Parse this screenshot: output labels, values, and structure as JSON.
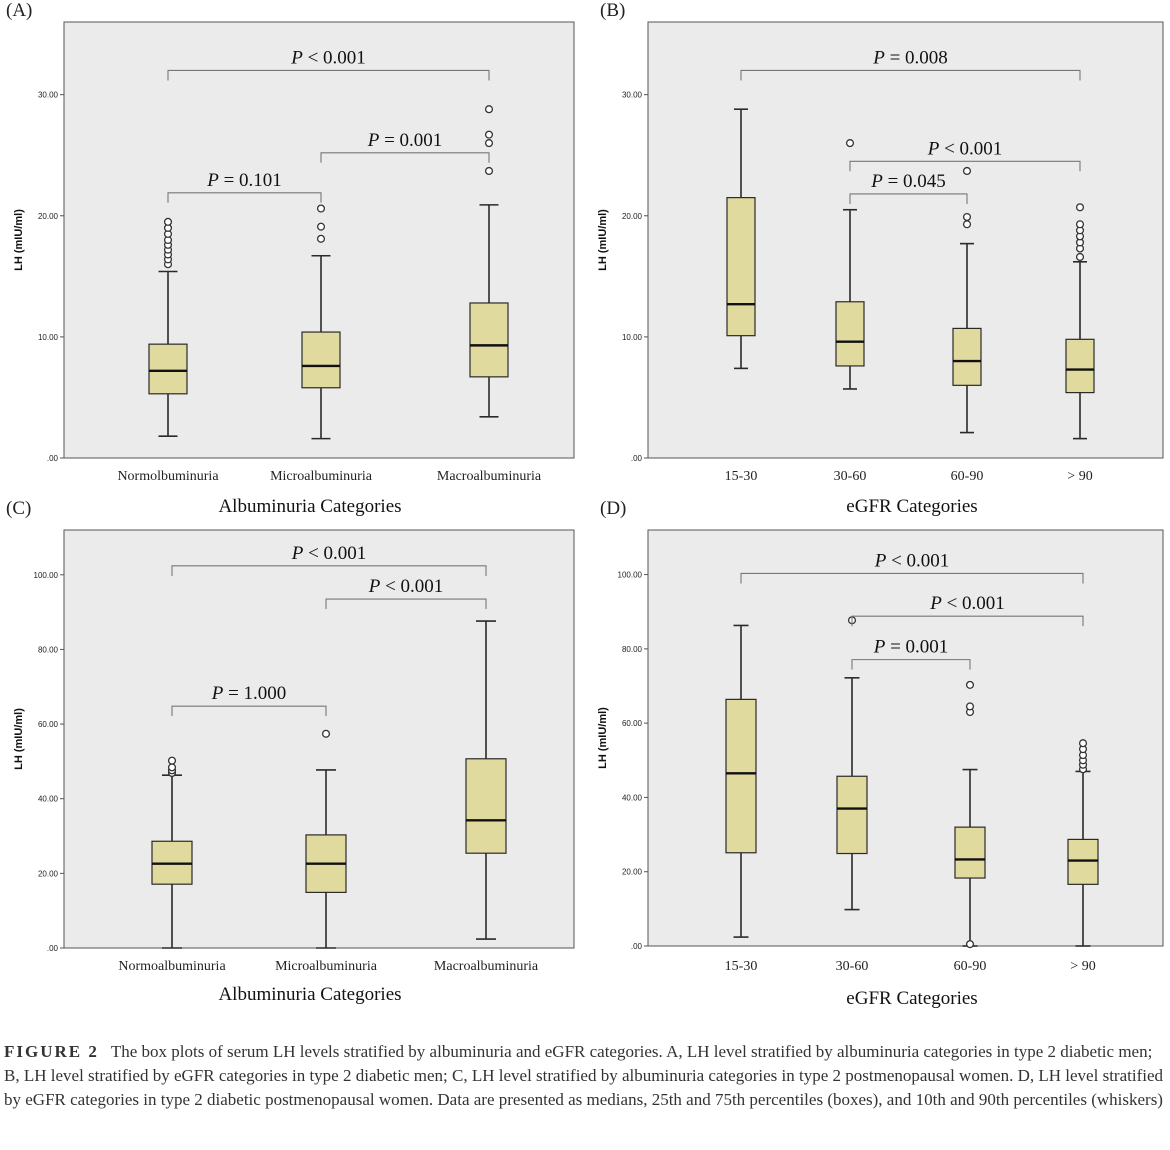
{
  "chart_data": [
    {
      "type": "box",
      "panel": "(A)",
      "ylabel": "LH (mIU/ml)",
      "xlabel": "Albuminuria Categories",
      "ylim": [
        0,
        36
      ],
      "yticks": [
        0,
        10,
        20,
        30
      ],
      "ytick_labels": [
        ".00",
        "10.00",
        "20.00",
        "30.00"
      ],
      "categories": [
        "Normolbuminuria",
        "Microalbuminuria",
        "Macroalbuminuria"
      ],
      "boxes": [
        {
          "low": 1.8,
          "q1": 5.3,
          "median": 7.2,
          "q3": 9.4,
          "high": 15.4,
          "outliers": [
            16.0,
            16.4,
            16.8,
            17.2,
            17.6,
            18.0,
            18.5,
            19.0,
            19.5
          ]
        },
        {
          "low": 1.6,
          "q1": 5.8,
          "median": 7.6,
          "q3": 10.4,
          "high": 16.7,
          "outliers": [
            18.1,
            19.1,
            20.6
          ]
        },
        {
          "low": 3.4,
          "q1": 6.7,
          "median": 9.3,
          "q3": 12.8,
          "high": 20.9,
          "outliers": [
            23.7,
            26.0,
            26.7,
            28.8
          ]
        }
      ],
      "comparisons": [
        {
          "from": 0,
          "to": 2,
          "label": "P < 0.001",
          "level": 32.0
        },
        {
          "from": 1,
          "to": 2,
          "label": "P = 0.001",
          "level": 25.2
        },
        {
          "from": 0,
          "to": 1,
          "label": "P = 0.101",
          "level": 21.9
        }
      ]
    },
    {
      "type": "box",
      "panel": "(B)",
      "ylabel": "LH (mIU/ml)",
      "xlabel": "eGFR Categories",
      "ylim": [
        0,
        36
      ],
      "yticks": [
        0,
        10,
        20,
        30
      ],
      "ytick_labels": [
        ".00",
        "10.00",
        "20.00",
        "30.00"
      ],
      "categories": [
        "15-30",
        "30-60",
        "60-90",
        "> 90"
      ],
      "boxes": [
        {
          "low": 7.4,
          "q1": 10.1,
          "median": 12.7,
          "q3": 21.5,
          "high": 28.8,
          "outliers": []
        },
        {
          "low": 5.7,
          "q1": 7.6,
          "median": 9.6,
          "q3": 12.9,
          "high": 20.5,
          "outliers": [
            26.0
          ]
        },
        {
          "low": 2.1,
          "q1": 6.0,
          "median": 8.0,
          "q3": 10.7,
          "high": 17.7,
          "outliers": [
            19.3,
            19.9,
            23.7
          ]
        },
        {
          "low": 1.6,
          "q1": 5.4,
          "median": 7.3,
          "q3": 9.8,
          "high": 16.2,
          "outliers": [
            16.6,
            17.3,
            17.8,
            18.3,
            18.8,
            19.3,
            20.7
          ]
        }
      ],
      "comparisons": [
        {
          "from": 0,
          "to": 3,
          "label": "P = 0.008",
          "level": 32.0
        },
        {
          "from": 1,
          "to": 3,
          "label": "P < 0.001",
          "level": 24.5
        },
        {
          "from": 1,
          "to": 2,
          "label": "P = 0.045",
          "level": 21.8
        }
      ]
    },
    {
      "type": "box",
      "panel": "(C)",
      "ylabel": "LH (mIU/ml)",
      "xlabel": "Albuminuria Categories",
      "ylim": [
        0,
        112
      ],
      "yticks": [
        0,
        20,
        40,
        60,
        80,
        100
      ],
      "ytick_labels": [
        ".00",
        "20.00",
        "40.00",
        "60.00",
        "80.00",
        "100.00"
      ],
      "categories": [
        "Normoalbuminuria",
        "Microalbuminuria",
        "Macroalbuminuria"
      ],
      "boxes": [
        {
          "low": 0.0,
          "q1": 17.1,
          "median": 22.6,
          "q3": 28.6,
          "high": 46.3,
          "outliers": [
            46.9,
            47.6,
            48.4,
            50.2
          ]
        },
        {
          "low": 0.0,
          "q1": 14.9,
          "median": 22.6,
          "q3": 30.3,
          "high": 47.7,
          "outliers": [
            57.4
          ]
        },
        {
          "low": 2.4,
          "q1": 25.4,
          "median": 34.2,
          "q3": 50.7,
          "high": 87.6,
          "outliers": []
        }
      ],
      "comparisons": [
        {
          "from": 0,
          "to": 2,
          "label": "P < 0.001",
          "level": 102.4
        },
        {
          "from": 1,
          "to": 2,
          "label": "P < 0.001",
          "level": 93.5
        },
        {
          "from": 0,
          "to": 1,
          "label": "P = 1.000",
          "level": 64.8
        }
      ]
    },
    {
      "type": "box",
      "panel": "(D)",
      "ylabel": "LH (mIU/ml)",
      "xlabel": "eGFR Categories",
      "ylim": [
        0,
        112
      ],
      "yticks": [
        0,
        20,
        40,
        60,
        80,
        100
      ],
      "ytick_labels": [
        ".00",
        "20.00",
        "40.00",
        "60.00",
        "80.00",
        "100.00"
      ],
      "categories": [
        "15-30",
        "30-60",
        "60-90",
        "> 90"
      ],
      "boxes": [
        {
          "low": 2.4,
          "q1": 25.1,
          "median": 46.5,
          "q3": 66.4,
          "high": 86.3,
          "outliers": []
        },
        {
          "low": 9.8,
          "q1": 24.9,
          "median": 37.0,
          "q3": 45.7,
          "high": 72.2,
          "outliers": [
            87.7
          ]
        },
        {
          "low": 0.0,
          "q1": 18.3,
          "median": 23.3,
          "q3": 32.0,
          "high": 47.5,
          "outliers": [
            0.5,
            63.0,
            64.5,
            70.3
          ]
        },
        {
          "low": 0.0,
          "q1": 16.6,
          "median": 23.0,
          "q3": 28.7,
          "high": 47.0,
          "outliers": [
            47.6,
            48.8,
            50.0,
            51.4,
            53.0,
            54.6
          ]
        }
      ],
      "comparisons": [
        {
          "from": 0,
          "to": 3,
          "label": "P < 0.001",
          "level": 100.3
        },
        {
          "from": 1,
          "to": 3,
          "label": "P < 0.001",
          "level": 88.8
        },
        {
          "from": 1,
          "to": 2,
          "label": "P = 0.001",
          "level": 77.1
        }
      ]
    }
  ],
  "colors": {
    "box_fill": "#e0da9e",
    "box_stroke": "#2a2a2a",
    "plot_bg": "#ebebeb",
    "frame": "#555555"
  },
  "caption": {
    "label": "FIGURE 2",
    "text": "The box plots of serum LH levels stratified by albuminuria and eGFR categories. A, LH level stratified by albuminuria categories in type 2 diabetic men; B, LH level stratified by eGFR categories in type 2 diabetic men; C, LH level stratified by albuminuria categories in type 2 postmenopausal women. D, LH level stratified by eGFR categories in type 2 diabetic postmenopausal women. Data are presented as medians, 25th and 75th percentiles (boxes), and 10th and 90th percentiles (whiskers)"
  }
}
